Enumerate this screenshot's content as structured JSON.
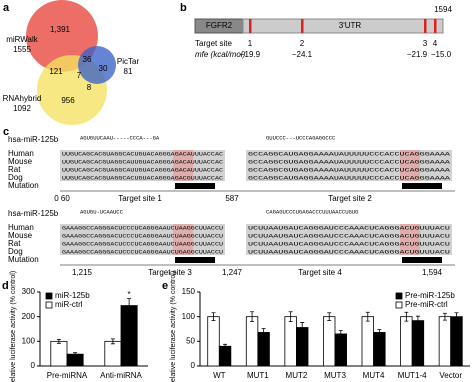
{
  "figure": {
    "a": {
      "label": "a",
      "sets": [
        {
          "name": "miRWalk",
          "total": "1555"
        },
        {
          "name": "PicTar",
          "total": "81"
        },
        {
          "name": "RNAhybrid",
          "total": "1092"
        }
      ],
      "regions": [
        "1,391",
        "36",
        "121",
        "7",
        "30",
        "956",
        "8"
      ]
    },
    "b": {
      "label": "b",
      "gene": "FGFR2",
      "utr": "3'UTR",
      "length": "1594",
      "site_heading": "Target site",
      "sites": [
        "1",
        "2",
        "3",
        "4"
      ],
      "mfe_heading": "mfe (kcal/mol)",
      "mfe": [
        "−19.9",
        "−24.1",
        "−21.9",
        "−15.0"
      ]
    },
    "c": {
      "label": "c",
      "mir_label": "hsa-miR-125b",
      "species": [
        "Human",
        "Mouse",
        "Rat",
        "Dog",
        "Mutation"
      ],
      "blocks": [
        {
          "mir": [
            "AGUGUUCAAU-----CCCA---GA",
            "GUUCCC---UCCCAGAGGCCC"
          ],
          "rows": [
            [
              "UUGUCAGCACGUAGGCACUGUACAGGGAGACAUUUACCAC",
              "GCCAGGCAUGAGGAAAAUAUUUUUCCCACCUCAGGGAAAA"
            ],
            [
              "UUGUCAGCACGUAGGCAUUGUACAGGGAGACAUUUACCAC",
              "GCCAGGCGUGAGGAAAAUAUUUUUCCCACCUCAGGGAAAA"
            ],
            [
              "UUGUCAGCACGUAGGCAUUGUACAGGGAGACAUUUACCAC",
              "GCCAGGCGUGAGGAAAAUAUUUUUCCCACCUCAGGGAAAA"
            ],
            [
              "UUGUCAGCACGUAGGCACUGUACAGGGAGACGUUUACCAC",
              "GCCAGGCAUGAGGAAAAUAUUUUUCCCACCUCAGGGAAAA"
            ]
          ],
          "ruler": [
            "0 60",
            "Target site 1",
            "587",
            "Target site 2"
          ]
        },
        {
          "mir": [
            "AGUGU-UCAAUCC",
            "CAGAGUCCCUGAGACCCUUUAACCUGUG"
          ],
          "rows": [
            [
              "GAAAGGCCAGGGACUCCCUCAGGGAAUCUAAGGCUUACCU",
              "UCUUAAUGAUCAGGGAUCCCAAACUCAGGGACUGUUUACU"
            ],
            [
              "GAAAGGCCAGGGACUCCCUCAGGGAAUCUAAGGCUUACCU",
              "UCUUAAUGAUCAGGGAUCCCAAACUCAGGGACUGUUUACU"
            ],
            [
              "GAAAGGCCAGGGACUCCCUCAGGGAAUCUAAGGCUUACCU",
              "UCUUAAUGAUCAGGGAUCCCAAACUCAGGGACUGUUUACU"
            ],
            [
              "GAAAGGCCAGGGACUCCCUCAGGGAAUCUGAGGCUUACCU",
              "UCUUAAUGAUCAGGGAUCCCAAACUCAGGGACUGUUUACU"
            ]
          ],
          "ruler": [
            "1,215",
            "Target site 3",
            "1,247",
            "Target site 4",
            "1,594"
          ]
        }
      ]
    }
  },
  "chart_data": [
    {
      "panel": "d",
      "type": "bar",
      "ylabel": "Relative luciferase activity (% control)",
      "categories": [
        "Pre-miRNA",
        "Anti-miRNA"
      ],
      "series": [
        {
          "name": "miR-ctrl",
          "color": "#ffffff",
          "values": [
            100,
            100
          ],
          "errors": [
            8,
            10
          ]
        },
        {
          "name": "miR-125b",
          "color": "#000000",
          "values": [
            48,
            245
          ],
          "errors": [
            6,
            28
          ],
          "significance": [
            "**",
            "*"
          ]
        }
      ],
      "ylim": [
        0,
        300
      ],
      "yticks": [
        0,
        100,
        200,
        300
      ],
      "legend": "upper left"
    },
    {
      "panel": "e",
      "type": "bar",
      "ylabel": "Relative luciferase activity (% control)",
      "categories": [
        "WT",
        "MUT1",
        "MUT2",
        "MUT3",
        "MUT4",
        "MUT1-4",
        "Vector"
      ],
      "series": [
        {
          "name": "Pre-miR-ctrl",
          "color": "#ffffff",
          "values": [
            100,
            100,
            100,
            100,
            100,
            100,
            100
          ],
          "errors": [
            8,
            10,
            10,
            8,
            9,
            9,
            7
          ]
        },
        {
          "name": "Pre-miR-125b",
          "color": "#000000",
          "values": [
            40,
            68,
            78,
            65,
            68,
            92,
            100
          ],
          "errors": [
            4,
            8,
            10,
            7,
            6,
            9,
            8
          ],
          "significance": [
            "***",
            "**",
            "*",
            "**",
            "**",
            null,
            null
          ]
        }
      ],
      "ylim": [
        0,
        150
      ],
      "yticks": [
        0,
        50,
        100,
        150
      ],
      "legend": "upper right"
    }
  ]
}
